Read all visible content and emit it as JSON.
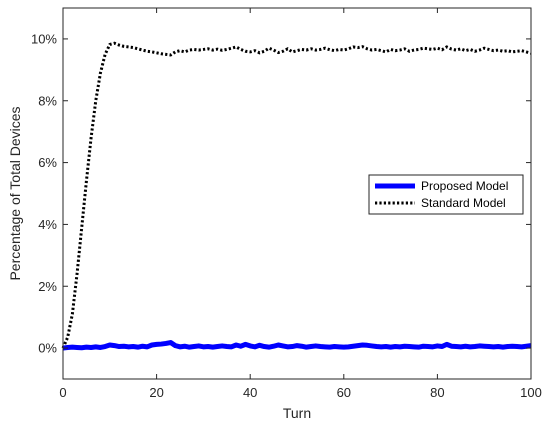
{
  "chart_data": {
    "type": "line",
    "title": "",
    "xlabel": "Turn",
    "ylabel": "Percentage of Total Devices",
    "xlim": [
      0,
      100
    ],
    "ylim": [
      -1,
      11
    ],
    "grid": false,
    "legend_position": "right",
    "x_ticks": [
      {
        "value": 0,
        "label": "0"
      },
      {
        "value": 20,
        "label": "20"
      },
      {
        "value": 40,
        "label": "40"
      },
      {
        "value": 60,
        "label": "60"
      },
      {
        "value": 80,
        "label": "80"
      },
      {
        "value": 100,
        "label": "100"
      }
    ],
    "y_ticks": [
      {
        "value": 0,
        "label": "0%"
      },
      {
        "value": 2,
        "label": "2%"
      },
      {
        "value": 4,
        "label": "4%"
      },
      {
        "value": 6,
        "label": "6%"
      },
      {
        "value": 8,
        "label": "8%"
      },
      {
        "value": 10,
        "label": "10%"
      }
    ],
    "x": [
      0,
      1,
      2,
      3,
      4,
      5,
      6,
      7,
      8,
      9,
      10,
      11,
      12,
      13,
      14,
      15,
      16,
      17,
      18,
      19,
      20,
      21,
      22,
      23,
      24,
      25,
      26,
      27,
      28,
      29,
      30,
      31,
      32,
      33,
      34,
      35,
      36,
      37,
      38,
      39,
      40,
      41,
      42,
      43,
      44,
      45,
      46,
      47,
      48,
      49,
      50,
      51,
      52,
      53,
      54,
      55,
      56,
      57,
      58,
      59,
      60,
      61,
      62,
      63,
      64,
      65,
      66,
      67,
      68,
      69,
      70,
      71,
      72,
      73,
      74,
      75,
      76,
      77,
      78,
      79,
      80,
      81,
      82,
      83,
      84,
      85,
      86,
      87,
      88,
      89,
      90,
      91,
      92,
      93,
      94,
      95,
      96,
      97,
      98,
      99,
      100
    ],
    "series": [
      {
        "name": "Proposed Model",
        "color": "#0000ff",
        "style": "solid",
        "values": [
          0.0,
          0.02,
          0.03,
          0.02,
          0.01,
          0.03,
          0.02,
          0.04,
          0.02,
          0.05,
          0.1,
          0.08,
          0.05,
          0.06,
          0.04,
          0.05,
          0.03,
          0.06,
          0.04,
          0.1,
          0.12,
          0.13,
          0.15,
          0.18,
          0.08,
          0.04,
          0.06,
          0.03,
          0.05,
          0.07,
          0.04,
          0.05,
          0.03,
          0.05,
          0.07,
          0.05,
          0.04,
          0.1,
          0.06,
          0.12,
          0.07,
          0.04,
          0.09,
          0.05,
          0.03,
          0.06,
          0.1,
          0.07,
          0.04,
          0.05,
          0.08,
          0.06,
          0.03,
          0.05,
          0.07,
          0.05,
          0.04,
          0.03,
          0.05,
          0.04,
          0.03,
          0.04,
          0.06,
          0.08,
          0.1,
          0.09,
          0.07,
          0.05,
          0.04,
          0.05,
          0.03,
          0.05,
          0.04,
          0.06,
          0.05,
          0.04,
          0.03,
          0.06,
          0.05,
          0.04,
          0.07,
          0.05,
          0.12,
          0.06,
          0.05,
          0.04,
          0.06,
          0.04,
          0.05,
          0.07,
          0.06,
          0.05,
          0.04,
          0.05,
          0.03,
          0.05,
          0.06,
          0.05,
          0.04,
          0.06,
          0.08
        ]
      },
      {
        "name": "Standard Model",
        "color": "#000000",
        "style": "dotted",
        "values": [
          0.0,
          0.35,
          1.1,
          2.4,
          3.9,
          5.4,
          6.8,
          8.0,
          8.9,
          9.5,
          9.82,
          9.86,
          9.8,
          9.76,
          9.74,
          9.72,
          9.68,
          9.64,
          9.6,
          9.58,
          9.55,
          9.52,
          9.5,
          9.48,
          9.58,
          9.62,
          9.58,
          9.64,
          9.66,
          9.64,
          9.66,
          9.68,
          9.64,
          9.67,
          9.63,
          9.66,
          9.7,
          9.74,
          9.66,
          9.6,
          9.58,
          9.62,
          9.55,
          9.6,
          9.7,
          9.64,
          9.56,
          9.6,
          9.68,
          9.58,
          9.62,
          9.66,
          9.64,
          9.68,
          9.64,
          9.66,
          9.7,
          9.65,
          9.62,
          9.66,
          9.64,
          9.68,
          9.74,
          9.72,
          9.75,
          9.68,
          9.64,
          9.66,
          9.62,
          9.58,
          9.66,
          9.62,
          9.64,
          9.68,
          9.6,
          9.64,
          9.66,
          9.7,
          9.68,
          9.66,
          9.7,
          9.65,
          9.74,
          9.67,
          9.64,
          9.68,
          9.62,
          9.66,
          9.6,
          9.64,
          9.7,
          9.66,
          9.62,
          9.64,
          9.6,
          9.62,
          9.58,
          9.6,
          9.62,
          9.58,
          9.54
        ]
      }
    ]
  }
}
